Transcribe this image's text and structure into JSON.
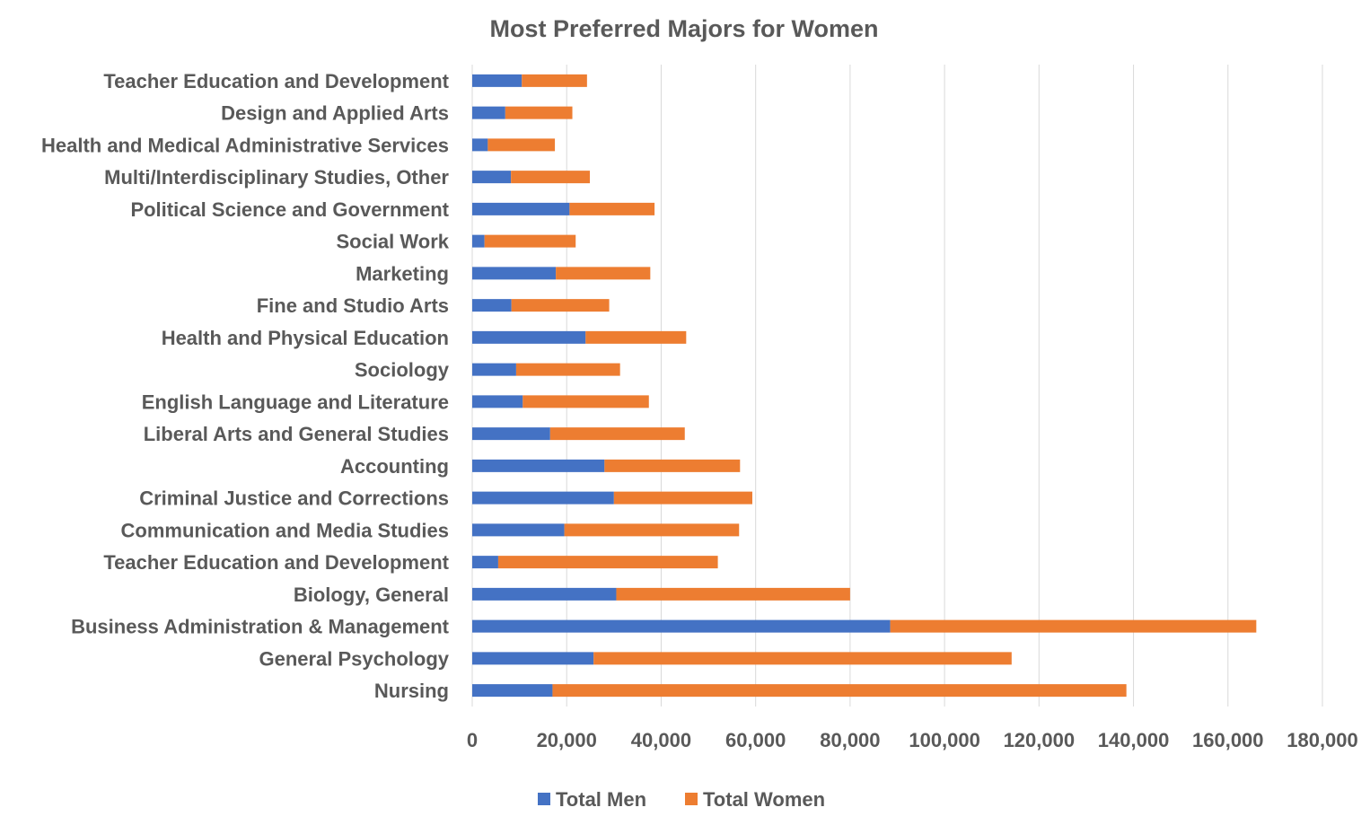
{
  "chart_data": {
    "type": "bar",
    "orientation": "horizontal",
    "stacked": true,
    "title": "Most Preferred Majors for Women",
    "xlabel": "",
    "ylabel": "",
    "xlim": [
      0,
      180000
    ],
    "x_ticks": [
      0,
      20000,
      40000,
      60000,
      80000,
      100000,
      120000,
      140000,
      160000,
      180000
    ],
    "x_tick_labels": [
      "0",
      "20,000",
      "40,000",
      "60,000",
      "80,000",
      "100,000",
      "120,000",
      "140,000",
      "160,000",
      "180,000"
    ],
    "grid": true,
    "legend_position": "bottom",
    "categories": [
      "Nursing",
      "General Psychology",
      "Business Administration & Management",
      "Biology, General",
      "Teacher Education and Development",
      "Communication and Media Studies",
      "Criminal Justice and Corrections",
      "Accounting",
      "Liberal Arts and General Studies",
      "English Language and Literature",
      "Sociology",
      "Health and Physical Education",
      "Fine and Studio Arts",
      "Marketing",
      "Social Work",
      "Political Science and Government",
      "Multi/Interdisciplinary Studies, Other",
      "Health and Medical Administrative Services",
      "Design and Applied Arts",
      "Teacher Education and Development"
    ],
    "series": [
      {
        "name": "Total Men",
        "color": "#4472c4",
        "values": [
          17000,
          25700,
          88500,
          30500,
          5500,
          19500,
          30000,
          28000,
          16500,
          10700,
          9300,
          24000,
          8300,
          17700,
          2600,
          20600,
          8200,
          3300,
          7000,
          10500
        ]
      },
      {
        "name": "Total Women",
        "color": "#ed7d31",
        "values": [
          121500,
          88500,
          77500,
          49500,
          46500,
          37000,
          29300,
          28700,
          28500,
          26700,
          22000,
          21300,
          20700,
          20000,
          19300,
          18000,
          16700,
          14200,
          14200,
          13800
        ]
      }
    ]
  }
}
